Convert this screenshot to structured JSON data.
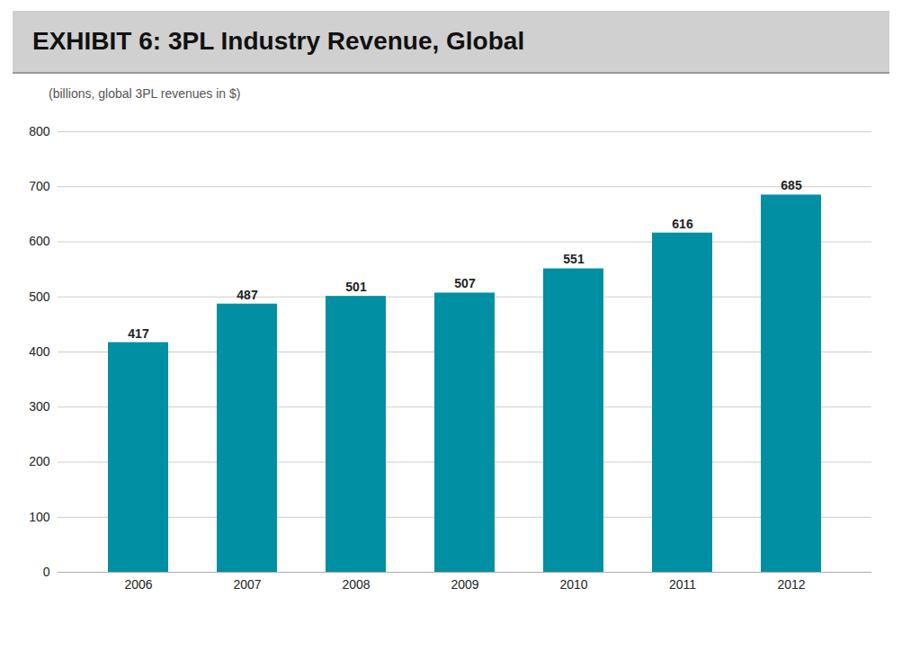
{
  "chart_data": {
    "type": "bar",
    "title": "EXHIBIT 6: 3PL Industry Revenue, Global",
    "subtitle": "(billions, global 3PL revenues in $)",
    "categories": [
      "2006",
      "2007",
      "2008",
      "2009",
      "2010",
      "2011",
      "2012"
    ],
    "values": [
      417,
      487,
      501,
      507,
      551,
      616,
      685
    ],
    "color": "#008fa3",
    "ylim": [
      0,
      800
    ],
    "yticks": [
      0,
      100,
      200,
      300,
      400,
      500,
      600,
      700,
      800
    ],
    "grid": true,
    "data_labels": true
  }
}
